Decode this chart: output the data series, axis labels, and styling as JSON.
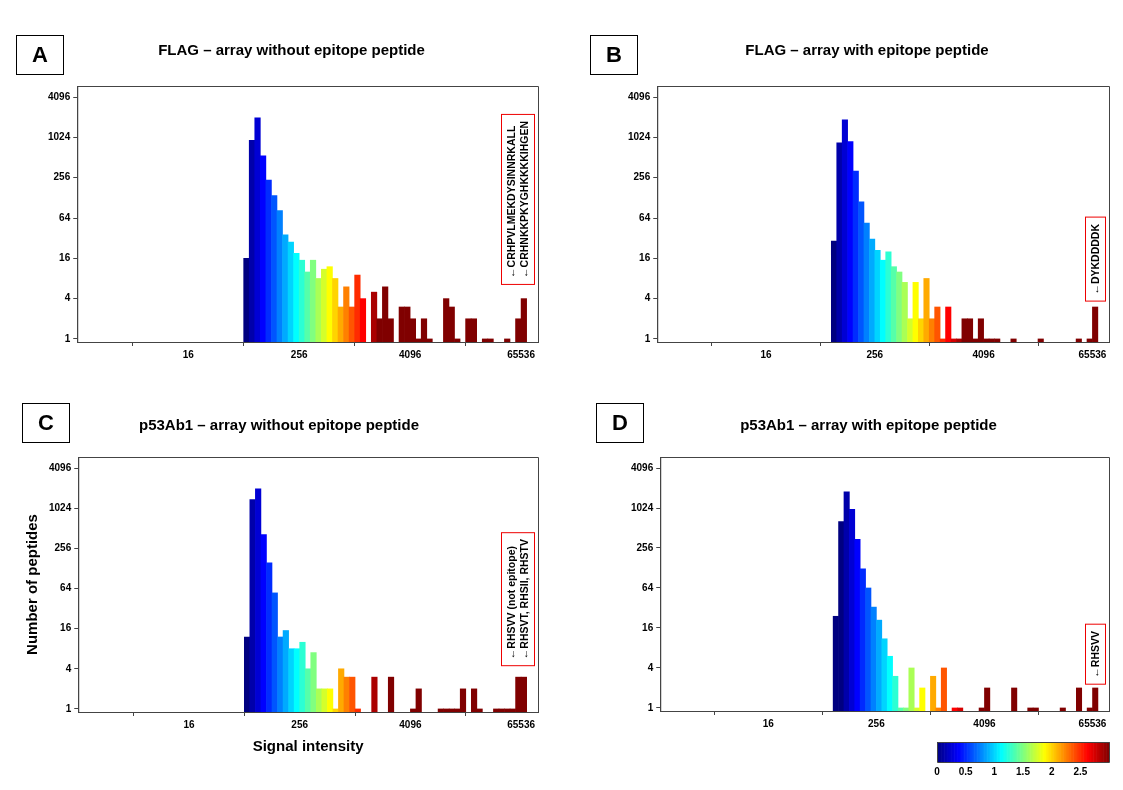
{
  "chart_data": [
    {
      "type": "histogram",
      "title": "FLAG – array without epitope peptide",
      "log": "xy",
      "xlim": [
        1,
        100000
      ],
      "xticks": [
        16,
        256,
        4096,
        65536
      ],
      "ylim": [
        0.9,
        6000
      ],
      "yticks": [
        1,
        4,
        16,
        64,
        256,
        1024,
        4096
      ],
      "bins": [
        64,
        73.5,
        84.4,
        97,
        111.4,
        128,
        147,
        168.9,
        194,
        222.9,
        256,
        294.1,
        337.8,
        388,
        445.7,
        512,
        588.1,
        675.6,
        776,
        891.4,
        1024,
        1176,
        1351,
        1552,
        1783,
        2048,
        2353,
        2702,
        3104,
        3566,
        4096,
        4705,
        5405,
        6208,
        7132,
        8192,
        9410,
        10809,
        12417,
        14263,
        16384,
        18820,
        21619,
        24834,
        28526,
        32768,
        37641,
        43238,
        49667,
        57052,
        65536,
        75281
      ],
      "values": [
        16,
        928,
        2000,
        545,
        236,
        138,
        83,
        36,
        28,
        19,
        15,
        10,
        15,
        8,
        11,
        12,
        8,
        3,
        6,
        3,
        9,
        4,
        null,
        5,
        2,
        6,
        2,
        null,
        3,
        3,
        2,
        1,
        2,
        1,
        null,
        null,
        4,
        3,
        1,
        null,
        2,
        2,
        null,
        1,
        1,
        null,
        null,
        1,
        null,
        2,
        4
      ],
      "colors": [
        "#000080",
        "#0000aa",
        "#0000d4",
        "#0000ff",
        "#002bff",
        "#0055ff",
        "#0080ff",
        "#00aaff",
        "#00d4ff",
        "#00ffff",
        "#2bffd4",
        "#55ffaa",
        "#80ff80",
        "#aaff55",
        "#d4ff2b",
        "#ffff00",
        "#ffd400",
        "#ffaa00",
        "#ff8000",
        "#ff5500",
        "#ff2b00",
        "#ff0000",
        "#d40000",
        "#aa0000",
        "#800000",
        "#800000",
        "#800000",
        "#800000",
        "#800000",
        "#800000",
        "#800000",
        "#800000",
        "#800000",
        "#800000",
        "#800000",
        "#800000",
        "#800000",
        "#800000",
        "#800000",
        "#800000",
        "#800000",
        "#800000",
        "#800000",
        "#800000",
        "#800000",
        "#800000",
        "#800000",
        "#800000",
        "#800000",
        "#800000",
        "#800000"
      ],
      "annotations": [
        "A",
        "←CRHPVLMEKDYSINNRKALL",
        "←CRHNKKPKYGHKKKKIHGEN"
      ]
    },
    {
      "type": "histogram",
      "title": "FLAG – array with epitope peptide",
      "log": "xy",
      "xlim": [
        1,
        100000
      ],
      "xticks": [
        16,
        256,
        4096,
        65536
      ],
      "ylim": [
        0.9,
        6000
      ],
      "yticks": [
        1,
        4,
        16,
        64,
        256,
        1024,
        4096
      ],
      "bins": [
        64,
        73.5,
        84.4,
        97,
        111.4,
        128,
        147,
        168.9,
        194,
        222.9,
        256,
        294.1,
        337.8,
        388,
        445.7,
        512,
        588.1,
        675.6,
        776,
        891.4,
        1024,
        1176,
        1351,
        1552,
        1783,
        2048,
        2353,
        2702,
        3104,
        3566,
        4096,
        4705,
        5405,
        6208,
        7132,
        8192,
        9410,
        10809,
        12417,
        14263,
        16384,
        18820,
        21619,
        24834,
        28526,
        32768,
        37641,
        43238,
        49667,
        57052,
        65536,
        75281
      ],
      "values": [
        null,
        null,
        29,
        853,
        1880,
        885,
        322,
        112,
        54,
        31,
        21,
        15,
        20,
        12,
        10,
        7,
        2,
        7,
        2,
        8,
        2,
        3,
        1,
        3,
        1,
        1,
        2,
        2,
        1,
        2,
        1,
        1,
        1,
        null,
        null,
        1,
        null,
        null,
        null,
        null,
        1,
        null,
        null,
        null,
        null,
        null,
        null,
        1,
        null,
        1,
        3
      ],
      "colors": [
        "#000080",
        "#000080",
        "#000080",
        "#0000aa",
        "#0000d4",
        "#0000ff",
        "#002bff",
        "#0055ff",
        "#0080ff",
        "#00aaff",
        "#00d4ff",
        "#00ffff",
        "#2bffd4",
        "#55ffaa",
        "#80ff80",
        "#aaff55",
        "#d4ff2b",
        "#ffff00",
        "#ffd400",
        "#ffaa00",
        "#ff8000",
        "#ff5500",
        "#ff2b00",
        "#ff0000",
        "#d40000",
        "#aa0000",
        "#800000",
        "#800000",
        "#800000",
        "#800000",
        "#800000",
        "#800000",
        "#800000",
        "#800000",
        "#800000",
        "#800000",
        "#800000",
        "#800000",
        "#800000",
        "#800000",
        "#800000",
        "#800000",
        "#800000",
        "#800000",
        "#800000",
        "#800000",
        "#800000",
        "#800000",
        "#800000",
        "#800000",
        "#800000"
      ],
      "annotations": [
        "B",
        "←DYKDDDDK"
      ]
    },
    {
      "type": "histogram",
      "title": "p53Ab1 – array without epitope peptide",
      "xlabel": "Signal intensity",
      "ylabel": "Number of peptides",
      "log": "xy",
      "xlim": [
        1,
        100000
      ],
      "xticks": [
        16,
        256,
        4096,
        65536
      ],
      "ylim": [
        0.9,
        6000
      ],
      "yticks": [
        1,
        4,
        16,
        64,
        256,
        1024,
        4096
      ],
      "bins": [
        64,
        73.5,
        84.4,
        97,
        111.4,
        128,
        147,
        168.9,
        194,
        222.9,
        256,
        294.1,
        337.8,
        388,
        445.7,
        512,
        588.1,
        675.6,
        776,
        891.4,
        1024,
        1176,
        1351,
        1552,
        1783,
        2048,
        2353,
        2702,
        3104,
        3566,
        4096,
        4705,
        5405,
        6208,
        7132,
        8192,
        9410,
        10809,
        12417,
        14263,
        16384,
        18820,
        21619,
        24834,
        28526,
        32768,
        37641,
        43238,
        49667,
        57052,
        65536,
        75281
      ],
      "values": [
        12,
        1380,
        2000,
        413,
        155,
        55,
        12,
        15,
        8,
        8,
        10,
        4,
        7,
        2,
        2,
        2,
        1,
        4,
        3,
        3,
        1,
        null,
        null,
        3,
        null,
        null,
        3,
        null,
        null,
        null,
        1,
        2,
        null,
        null,
        null,
        1,
        1,
        1,
        1,
        2,
        null,
        2,
        1,
        null,
        null,
        1,
        1,
        1,
        1,
        3,
        3
      ],
      "colors": [
        "#000080",
        "#0000aa",
        "#0000d4",
        "#0000ff",
        "#002bff",
        "#0055ff",
        "#0080ff",
        "#00aaff",
        "#00d4ff",
        "#00ffff",
        "#2bffd4",
        "#55ffaa",
        "#80ff80",
        "#aaff55",
        "#d4ff2b",
        "#ffff00",
        "#ffd400",
        "#ffaa00",
        "#ff8000",
        "#ff5500",
        "#ff2b00",
        "#ff0000",
        "#d40000",
        "#aa0000",
        "#800000",
        "#800000",
        "#800000",
        "#800000",
        "#800000",
        "#800000",
        "#800000",
        "#800000",
        "#800000",
        "#800000",
        "#800000",
        "#800000",
        "#800000",
        "#800000",
        "#800000",
        "#800000",
        "#800000",
        "#800000",
        "#800000",
        "#800000",
        "#800000",
        "#800000",
        "#800000",
        "#800000",
        "#800000",
        "#800000",
        "#800000"
      ],
      "annotations": [
        "C",
        "←RHSVV (not epitope)",
        "←RHSVT,  RHSII,  RHSTV"
      ]
    },
    {
      "type": "histogram",
      "title": "p53Ab1 – array with epitope peptide",
      "log": "xy",
      "xlim": [
        1,
        100000
      ],
      "xticks": [
        16,
        256,
        4096,
        65536
      ],
      "ylim": [
        0.9,
        6000
      ],
      "yticks": [
        1,
        4,
        16,
        64,
        256,
        1024,
        4096
      ],
      "clim": [
        0,
        3
      ],
      "cticks": [
        0,
        0.5,
        1,
        1.5,
        2,
        2.5
      ],
      "bins": [
        64,
        73.5,
        84.4,
        97,
        111.4,
        128,
        147,
        168.9,
        194,
        222.9,
        256,
        294.1,
        337.8,
        388,
        445.7,
        512,
        588.1,
        675.6,
        776,
        891.4,
        1024,
        1176,
        1351,
        1552,
        1783,
        2048,
        2353,
        2702,
        3104,
        3566,
        4096,
        4705,
        5405,
        6208,
        7132,
        8192,
        9410,
        10809,
        12417,
        14263,
        16384,
        18820,
        21619,
        24834,
        28526,
        32768,
        37641,
        43238,
        49667,
        57052,
        65536,
        75281
      ],
      "values": [
        null,
        null,
        24,
        640,
        1800,
        980,
        347,
        124,
        64,
        33,
        21,
        11,
        6,
        3,
        1,
        1,
        4,
        1,
        2,
        null,
        3,
        1,
        4,
        null,
        1,
        1,
        null,
        null,
        null,
        1,
        2,
        null,
        null,
        null,
        null,
        2,
        null,
        null,
        1,
        1,
        null,
        null,
        null,
        null,
        1,
        null,
        null,
        2,
        null,
        1,
        2
      ],
      "cvalues": [
        null,
        null,
        0,
        0,
        0.125,
        0.25,
        0.375,
        0.5,
        0.625,
        0.75,
        0.875,
        1,
        1.125,
        1.25,
        1.375,
        1.5,
        1.625,
        1.75,
        1.875,
        null,
        2.125,
        2.25,
        2.375,
        null,
        2.625,
        2.75,
        null,
        null,
        null,
        3,
        3,
        null,
        null,
        null,
        null,
        3,
        null,
        null,
        3,
        3,
        null,
        null,
        null,
        null,
        3,
        null,
        null,
        3,
        null,
        3,
        3
      ],
      "annotations": [
        "D",
        "←RHSVV"
      ]
    }
  ]
}
